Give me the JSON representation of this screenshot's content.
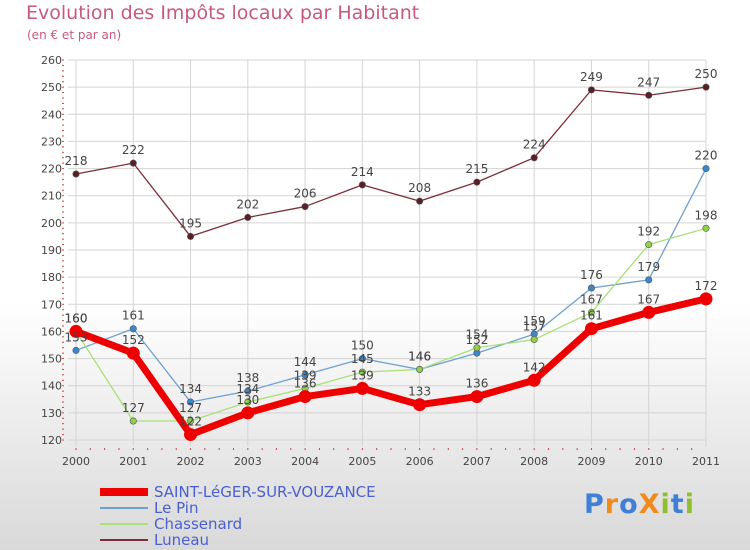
{
  "header": {
    "title": "Evolution des Impôts locaux par Habitant",
    "subtitle": "(en € et par an)"
  },
  "brand": {
    "text": "ProXiti",
    "letters": [
      "P",
      "r",
      "o",
      "X",
      "i",
      "t",
      "i"
    ],
    "letter_colors": [
      "#3f7fd6",
      "#ef8a1c",
      "#3f7fd6",
      "#ef8a1c",
      "#8fbf2f",
      "#3f7fd6",
      "#8fbf2f"
    ]
  },
  "chart_data": {
    "type": "line",
    "title": "Evolution des Impôts locaux par Habitant",
    "subtitle": "(en € et par an)",
    "xlabel": "",
    "ylabel": "",
    "ylim": [
      120,
      260
    ],
    "grid": true,
    "legend_position": "bottom-left",
    "x": [
      "2000",
      "2001",
      "2002",
      "2003",
      "2004",
      "2005",
      "2006",
      "2007",
      "2008",
      "2009",
      "2010",
      "2011"
    ],
    "yticks": [
      "120",
      "130",
      "140",
      "150",
      "160",
      "170",
      "180",
      "190",
      "200",
      "210",
      "220",
      "230",
      "240",
      "250",
      "260"
    ],
    "series": [
      {
        "name": "SAINT-LéGER-SUR-VOUZANCE",
        "color": "#ee0000",
        "marker_fill": "#ee0000",
        "values": [
          160,
          152,
          122,
          130,
          136,
          139,
          133,
          136,
          142,
          161,
          167,
          172
        ],
        "labels": [
          "160",
          "152",
          "122",
          "130",
          "136",
          "139",
          "133",
          "136",
          "142",
          "161",
          "167",
          "172"
        ]
      },
      {
        "name": "Le Pin",
        "color": "#6fa0d0",
        "marker_fill": "#3b86cc",
        "values": [
          153,
          161,
          134,
          138,
          144,
          150,
          146,
          152,
          159,
          176,
          179,
          220
        ],
        "labels": [
          "153",
          "161",
          "134",
          "138",
          "144",
          "150",
          "146",
          "152",
          "159",
          "176",
          "179",
          "220"
        ]
      },
      {
        "name": "Chassenard",
        "color": "#a8e07a",
        "marker_fill": "#8fd04a",
        "values": [
          160,
          127,
          127,
          134,
          139,
          145,
          146,
          154,
          157,
          167,
          192,
          198
        ],
        "labels": [
          "160",
          "127",
          "127",
          "134",
          "139",
          "145",
          "146",
          "154",
          "157",
          "167",
          "192",
          "198"
        ]
      },
      {
        "name": "Luneau",
        "color": "#7a2f38",
        "marker_fill": "#5c1e26",
        "values": [
          218,
          222,
          195,
          202,
          206,
          214,
          208,
          215,
          224,
          249,
          247,
          250
        ],
        "labels": [
          "218",
          "222",
          "195",
          "202",
          "206",
          "214",
          "208",
          "215",
          "224",
          "249",
          "247",
          "250"
        ]
      }
    ]
  }
}
